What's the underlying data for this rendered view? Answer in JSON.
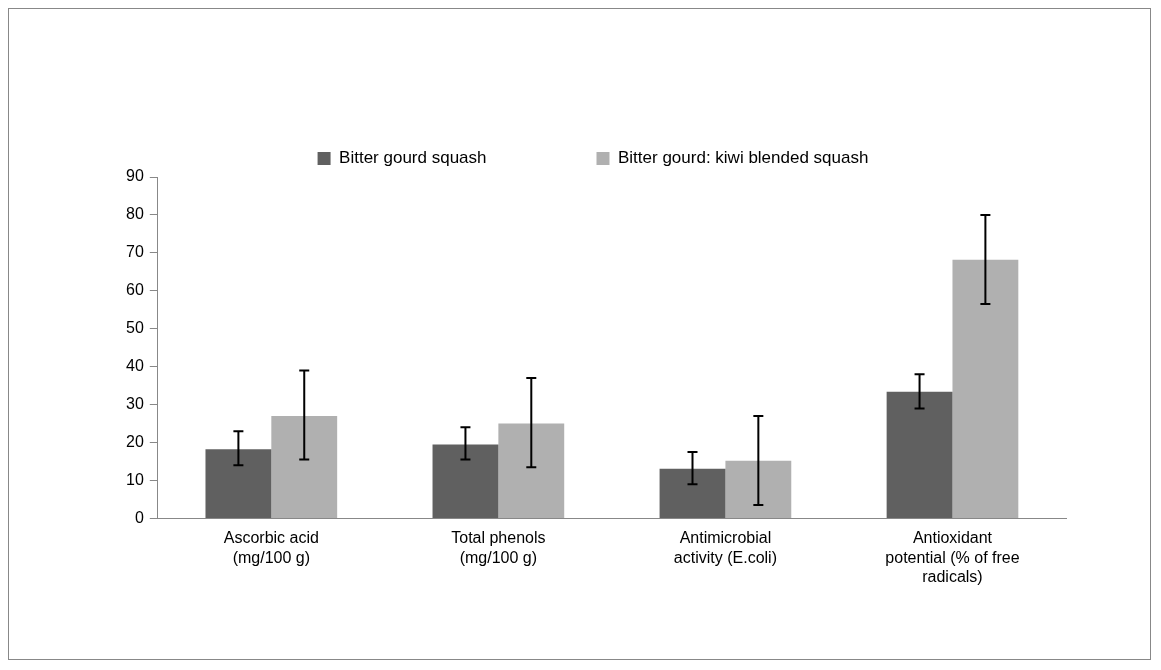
{
  "chart_data": {
    "type": "bar",
    "categories": [
      "Ascorbic acid (mg/100 g)",
      "Total phenols (mg/100 g)",
      "Antimicrobial activity (E.coli)",
      "Antioxidant potential (% of free radicals)"
    ],
    "series": [
      {
        "name": "Bitter gourd squash",
        "color": "#606060",
        "values": [
          18.2,
          19.5,
          13.1,
          33.4
        ],
        "errors": [
          [
            14,
            23
          ],
          [
            15.5,
            24
          ],
          [
            9,
            17.5
          ],
          [
            29,
            38
          ]
        ]
      },
      {
        "name": "Bitter gourd: kiwi blended squash",
        "color": "#b0b0b0",
        "values": [
          27,
          25,
          15.2,
          68.2
        ],
        "errors": [
          [
            15.5,
            39
          ],
          [
            13.5,
            37
          ],
          [
            3.5,
            27
          ],
          [
            56.5,
            80
          ]
        ]
      }
    ],
    "ylim": [
      0,
      90
    ],
    "yticks": [
      0,
      10,
      20,
      30,
      40,
      50,
      60,
      70,
      80,
      90
    ],
    "grid": false,
    "legend": "top"
  }
}
